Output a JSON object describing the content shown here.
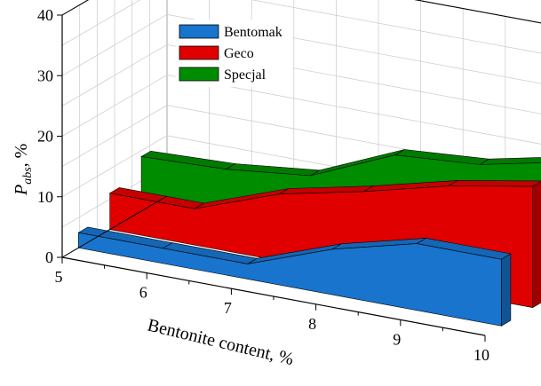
{
  "chart_data": {
    "type": "area",
    "title": "",
    "xlabel": "Bentonite content, %",
    "ylabel": "P_abs, %",
    "ylabel_main": "P",
    "ylabel_sub": "abs",
    "ylabel_tail": ", %",
    "x_ticks": [
      "5",
      "6",
      "7",
      "8",
      "9",
      "10"
    ],
    "y_ticks": [
      "0",
      "10",
      "20",
      "30",
      "40"
    ],
    "xlim": [
      5,
      10
    ],
    "ylim": [
      0,
      40
    ],
    "grid": true,
    "legend_position": "top-center",
    "x": [
      5,
      6,
      7,
      8,
      9,
      10
    ],
    "series": [
      {
        "name": "Bentomak",
        "color": "#1874cd",
        "values": [
          2.5,
          2.5,
          2.5,
          7.5,
          11,
          11
        ]
      },
      {
        "name": "Geco",
        "color": "#e00000",
        "values": [
          6,
          6,
          11,
          14,
          17.5,
          20
        ]
      },
      {
        "name": "Specjal",
        "color": "#008c00",
        "values": [
          9,
          9.5,
          11,
          17,
          18,
          21
        ]
      }
    ]
  }
}
